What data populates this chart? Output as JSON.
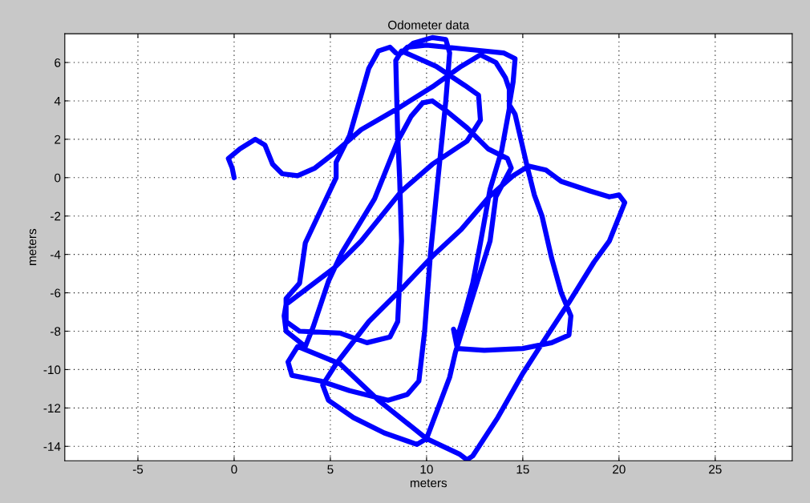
{
  "chart_data": {
    "type": "line",
    "title": "Odometer data",
    "xlabel": "meters",
    "ylabel": "meters",
    "xlim": [
      -8.8,
      29
    ],
    "ylim": [
      -14.75,
      7.5
    ],
    "xticks": [
      -5,
      0,
      5,
      10,
      15,
      20,
      25
    ],
    "yticks": [
      -14,
      -12,
      -10,
      -8,
      -6,
      -4,
      -2,
      0,
      2,
      4,
      6
    ],
    "grid": true,
    "marker": "none",
    "line_style": "solid",
    "series": [
      {
        "color": "#0000ff",
        "x": [
          0,
          -0.1,
          -0.3,
          0.3,
          1.1,
          1.6,
          2.0,
          2.5,
          3.3,
          4.2,
          5.1,
          6.6,
          8.5,
          10.4,
          11.8,
          12.8,
          13.6,
          14.1,
          14.3,
          14.3,
          13.9,
          13.3,
          12.8,
          12.4,
          12.0,
          11.6,
          11.4,
          11.6,
          13.0,
          15.0,
          16.5,
          17.4,
          17.5,
          17.0,
          16.5,
          16.0,
          15.6,
          15.2,
          14.9,
          14.6,
          14.3,
          14.5,
          14.6,
          14.0,
          12.0,
          10.0,
          9.0,
          8.7,
          9.3,
          10.3,
          11.0,
          11.2,
          11.0,
          10.6,
          10.2,
          9.9,
          9.6,
          9.0,
          8.0,
          6.0,
          4.5,
          3.0,
          2.8,
          3.3,
          5.5,
          7.5,
          10.0,
          11.7,
          12.1,
          12.4,
          13.7,
          15.0,
          15.9,
          17.4,
          18.7,
          19.5,
          20.3,
          20.0,
          19.5,
          18.5,
          17.0,
          16.2,
          15.3,
          14.5,
          13.25,
          11.8,
          10.3,
          8.7,
          7.0,
          5.3,
          4.6,
          4.9,
          6.2,
          7.8,
          9.5,
          10.0,
          11.2,
          11.5,
          12.3,
          13.3,
          13.6,
          14.4,
          14.2,
          13.2,
          12.1,
          11.0,
          10.3,
          9.8,
          9.2,
          8.5,
          7.3,
          5.6,
          4.9,
          4.1,
          3.7,
          2.7,
          2.6,
          2.7,
          5.2,
          6.6,
          8.7,
          10.3,
          12.1,
          12.8,
          12.7,
          12.0,
          10.5,
          8.7,
          8.4,
          8.5,
          8.6,
          8.7,
          8.5,
          8.1,
          6.9,
          5.5,
          3.4,
          2.7,
          2.7,
          3.4,
          3.7,
          4.5,
          5.3,
          5.3,
          6.0,
          7.0,
          7.5,
          8.1,
          8.4
        ],
        "values": [
          0,
          0.5,
          1.0,
          1.5,
          2.0,
          1.7,
          0.7,
          0.2,
          0.1,
          0.5,
          1.2,
          2.5,
          3.6,
          4.8,
          5.8,
          6.4,
          6.0,
          5.2,
          4.6,
          3.6,
          1.4,
          -0.6,
          -3.4,
          -5.5,
          -7.0,
          -8.3,
          -7.9,
          -8.9,
          -9.0,
          -8.9,
          -8.6,
          -8.2,
          -7.2,
          -6.0,
          -4.2,
          -2.0,
          -0.9,
          0.7,
          2.0,
          3.3,
          3.8,
          5.0,
          6.2,
          6.5,
          6.7,
          6.9,
          6.8,
          6.5,
          7.0,
          7.3,
          7.2,
          6.5,
          4.0,
          0.0,
          -4.0,
          -8.0,
          -10.6,
          -11.3,
          -11.6,
          -11.1,
          -10.6,
          -10.3,
          -9.6,
          -8.8,
          -9.7,
          -11.6,
          -13.6,
          -14.4,
          -14.7,
          -14.5,
          -12.5,
          -10.2,
          -8.8,
          -6.5,
          -4.4,
          -3.3,
          -1.3,
          -0.9,
          -1.0,
          -0.7,
          -0.2,
          0.4,
          0.6,
          0.1,
          -1.0,
          -2.7,
          -4.1,
          -5.8,
          -7.5,
          -9.7,
          -10.8,
          -11.6,
          -12.5,
          -13.3,
          -13.9,
          -13.6,
          -10.4,
          -9.1,
          -6.5,
          -3.3,
          -1.0,
          0.5,
          1.0,
          1.5,
          2.6,
          3.5,
          4.0,
          3.9,
          3.2,
          1.9,
          -1.1,
          -3.9,
          -5.4,
          -7.8,
          -8.8,
          -8.0,
          -7.2,
          -6.6,
          -4.7,
          -3.3,
          -0.7,
          0.7,
          1.9,
          3.0,
          4.3,
          4.8,
          5.8,
          6.6,
          6.1,
          2.2,
          0.0,
          -3.3,
          -7.5,
          -8.3,
          -8.6,
          -8.1,
          -8.0,
          -7.5,
          -6.3,
          -5.5,
          -3.4,
          -1.7,
          0.0,
          0.8,
          2.2,
          5.7,
          6.6,
          6.8,
          6.5
        ]
      }
    ]
  }
}
